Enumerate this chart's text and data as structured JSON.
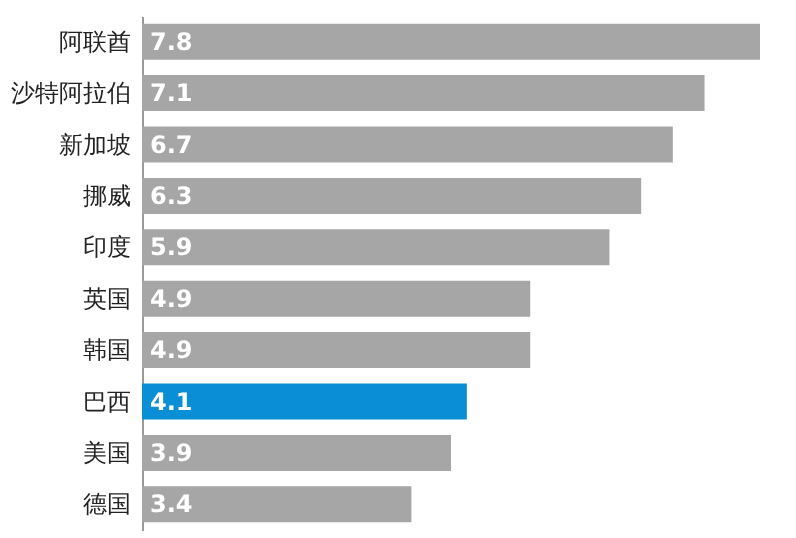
{
  "chart_data": {
    "type": "bar",
    "orientation": "horizontal",
    "data_labels": true,
    "grid": false,
    "categories": [
      "阿联酋",
      "沙特阿拉伯",
      "新加坡",
      "挪威",
      "印度",
      "英国",
      "韩国",
      "巴西",
      "美国",
      "德国"
    ],
    "values": [
      7.8,
      7.1,
      6.7,
      6.3,
      5.9,
      4.9,
      4.9,
      4.1,
      3.9,
      3.4
    ],
    "colors": [
      "#a6a6a6",
      "#a6a6a6",
      "#a6a6a6",
      "#a6a6a6",
      "#a6a6a6",
      "#a6a6a6",
      "#a6a6a6",
      "#0a8fd6",
      "#a6a6a6",
      "#a6a6a6"
    ]
  }
}
